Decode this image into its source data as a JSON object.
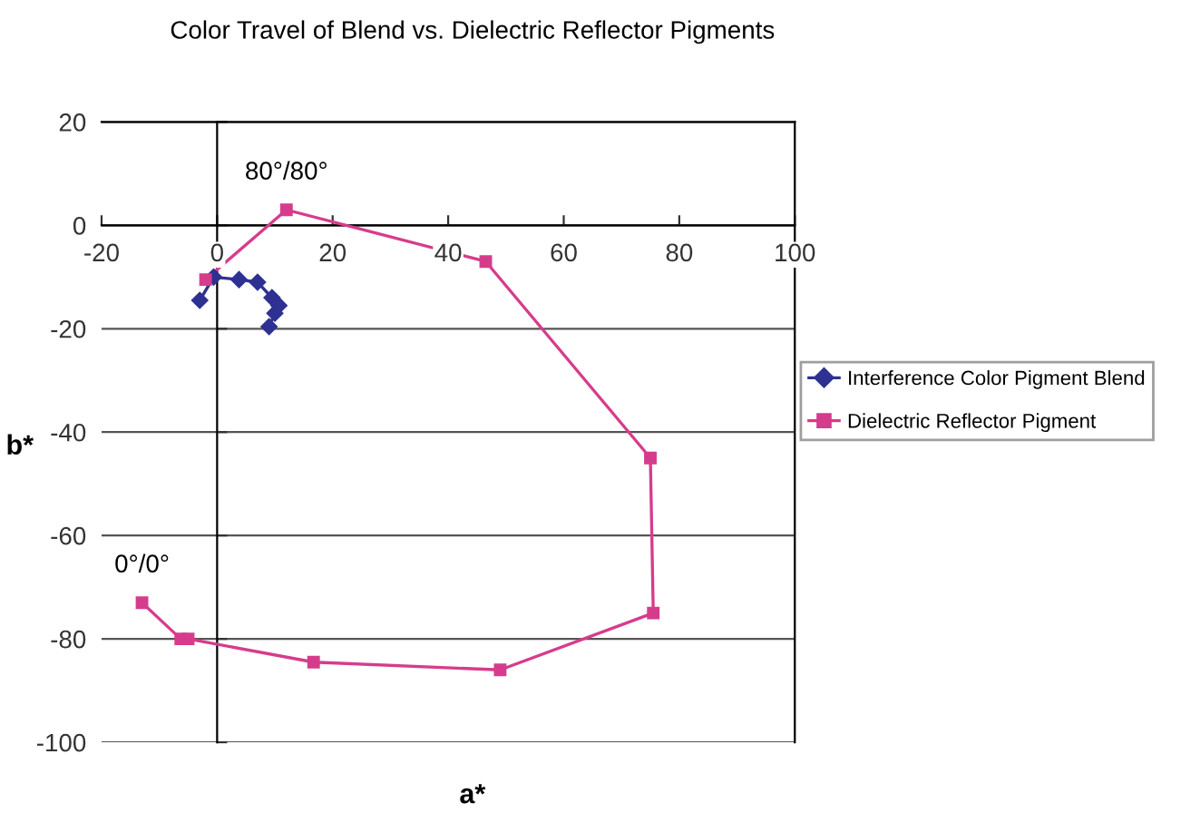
{
  "chart_data": {
    "type": "line",
    "title": "Color Travel of Blend vs. Dielectric Reflector Pigments",
    "xlabel": "a*",
    "ylabel": "b*",
    "series": [
      {
        "name": "Interference Color Pigment Blend",
        "color": "#2e3192",
        "marker": "diamond",
        "x": [
          -3,
          -0.6,
          3.8,
          7,
          9.5,
          10.7,
          10,
          9
        ],
        "values": [
          -14.5,
          -10,
          -10.5,
          -11,
          -14,
          -15.5,
          -17,
          -19.6
        ]
      },
      {
        "name": "Dielectric Reflector Pigment",
        "color": "#d63c8c",
        "marker": "square",
        "x": [
          -13,
          -6.3,
          -5,
          16.7,
          49,
          75.5,
          75,
          46.5,
          12,
          -2
        ],
        "values": [
          -73,
          -80,
          -80,
          -84.5,
          -86,
          -75,
          -45,
          -7,
          3,
          -10.5
        ]
      }
    ],
    "annotations": [
      {
        "text": "80°/80°",
        "x": 12,
        "y": 3
      },
      {
        "text": "0°/0°",
        "x": -13,
        "y": -73
      }
    ],
    "xlim": [
      -20,
      100
    ],
    "xticks": [
      -20,
      0,
      20,
      40,
      60,
      80,
      100
    ],
    "ylim": [
      -100,
      20
    ],
    "yticks": [
      -100,
      -80,
      -60,
      -40,
      -20,
      0,
      20
    ],
    "grid": "y",
    "legend": "right",
    "line_style": "solid"
  }
}
